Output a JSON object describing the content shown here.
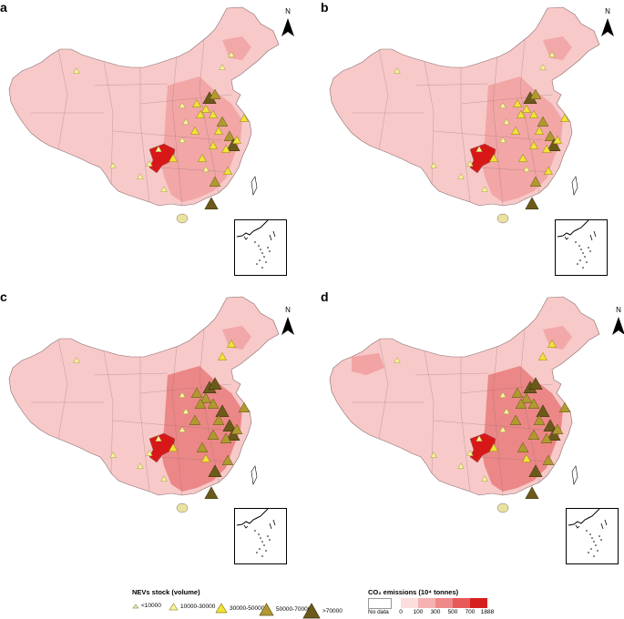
{
  "panels": [
    {
      "letter": "a",
      "north": "N"
    },
    {
      "letter": "b",
      "north": "N"
    },
    {
      "letter": "c",
      "north": "N"
    },
    {
      "letter": "d",
      "north": "N"
    }
  ],
  "legend_nev": {
    "title": "NEVs stock (volume)",
    "items": [
      {
        "label": "<10000",
        "color": "#f5f0b0",
        "stroke": "#9a9a60"
      },
      {
        "label": "10000-30000",
        "color": "#fbf59a",
        "stroke": "#a09a40"
      },
      {
        "label": "30000-50000",
        "color": "#f2e23a",
        "stroke": "#8a7d10"
      },
      {
        "label": "50000-70000",
        "color": "#b09a30",
        "stroke": "#5e5010"
      },
      {
        "label": ">70000",
        "color": "#6b5a1a",
        "stroke": "#3a2e08"
      }
    ]
  },
  "legend_co2": {
    "title": "CO₂ emissions (10⁴ tonnes)",
    "nodata_label": "No data",
    "ticks": [
      "0",
      "100",
      "300",
      "500",
      "700",
      "1888"
    ],
    "colors": [
      "#fcdede",
      "#f6b2b2",
      "#f08a8a",
      "#e85a5a",
      "#d62020"
    ]
  },
  "colors": {
    "base_region": "#f7c9c9",
    "mid_region": "#f09a9a",
    "high_region": "#e87070",
    "peak_region": "#d81818",
    "border": "#8a6a6a"
  }
}
